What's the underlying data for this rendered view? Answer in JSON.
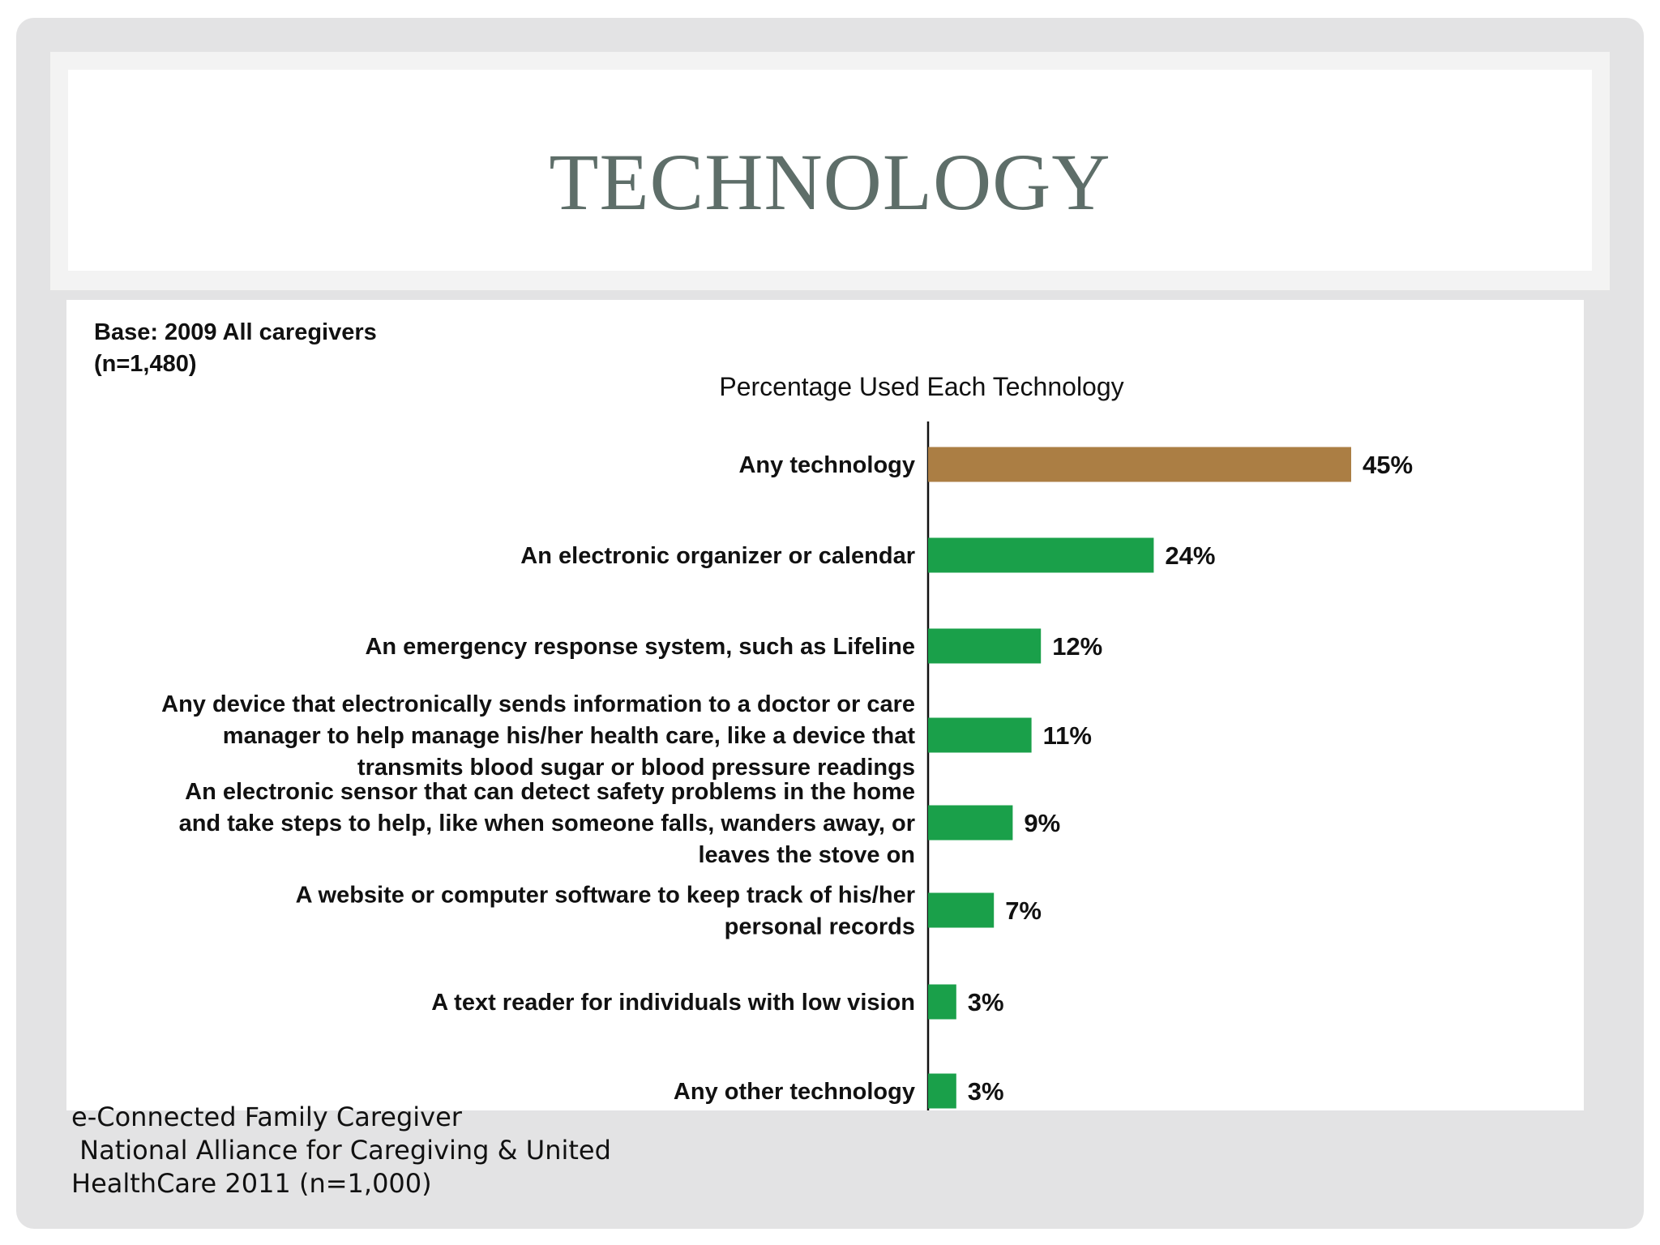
{
  "slide": {
    "title": "TECHNOLOGY"
  },
  "chart_data": {
    "type": "bar",
    "orientation": "horizontal",
    "base_note": [
      "Base:  2009 All caregivers",
      "(n=1,480)"
    ],
    "title": "Percentage Used Each Technology",
    "categories": [
      [
        "Any technology"
      ],
      [
        "An electronic organizer or calendar"
      ],
      [
        "An emergency response system, such as Lifeline"
      ],
      [
        "Any device that electronically sends information to a doctor or care",
        "manager to help manage his/her health care, like a device that",
        "transmits blood sugar or blood pressure readings"
      ],
      [
        "An electronic sensor that can detect safety problems in the home",
        "and take steps to help, like when someone falls, wanders away, or",
        "leaves the stove on"
      ],
      [
        "A website or computer software to keep track of his/her",
        "personal records"
      ],
      [
        "A text reader for individuals with low vision"
      ],
      [
        "Any other technology"
      ]
    ],
    "values": [
      45,
      24,
      12,
      11,
      9,
      7,
      3,
      3
    ],
    "value_labels": [
      "45%",
      "24%",
      "12%",
      "11%",
      "9%",
      "7%",
      "3%",
      "3%"
    ],
    "unit": "%",
    "xlim": [
      0,
      100
    ],
    "grid": false,
    "legend": "none",
    "colors": {
      "highlight": "#ab7e44",
      "default": "#1aa04a"
    },
    "highlight_index": 0
  },
  "source": {
    "lines": [
      "e-Connected Family Caregiver",
      " National Alliance for Caregiving & United",
      "HealthCare 2011 (n=1,000)"
    ]
  }
}
